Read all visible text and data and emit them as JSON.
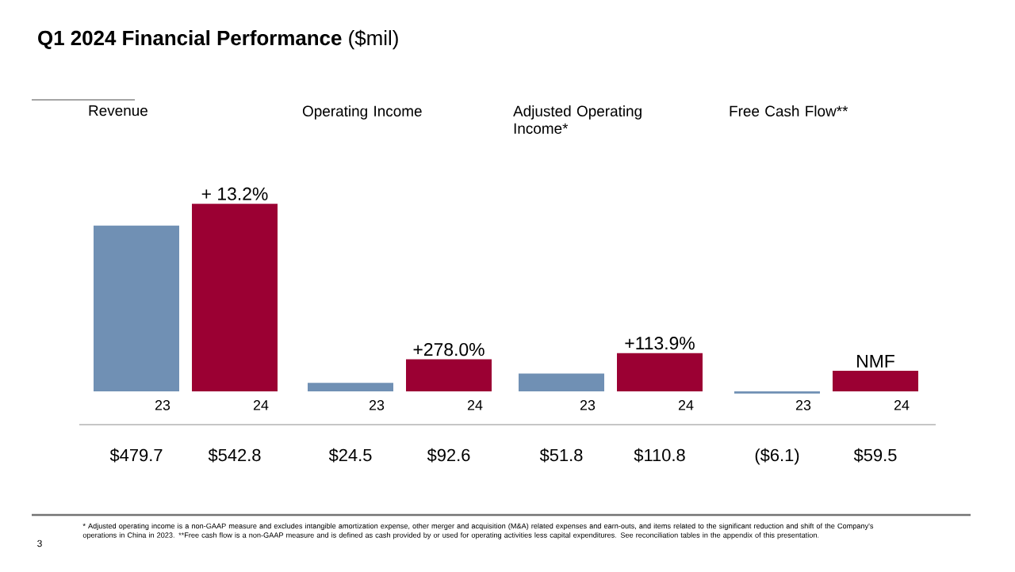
{
  "chart_data": [
    {
      "type": "bar",
      "title": "Revenue",
      "categories": [
        "23",
        "24"
      ],
      "values": [
        479.7,
        542.8
      ],
      "colors": [
        "#7090b4",
        "#9b0033"
      ],
      "value_labels": [
        "$479.7",
        "$542.8"
      ],
      "tick_labels": "x",
      "annotations": [
        {
          "text": "+ 13.2%",
          "x": "24",
          "y": 542.8
        },
        "**Q1 2024 Financial Performance** ($mil)",
        "* Adjusted operating income is a non-GAAP measure and excludes intangible amortization expense, other merger and acquisition (M&A) related expenses and earn-outs, and items related to the significant reduction and shift of the Company's operations in China in 2023. **Free cash flow is a non-GAAP measure and is defined as cash provided by or used for operating activities less capital expenditures. See reconciliation tables in the appendix of this presentation.",
        "3"
      ]
    },
    {
      "type": "bar",
      "title": "Operating Income",
      "categories": [
        "23",
        "24"
      ],
      "values": [
        24.5,
        92.6
      ],
      "colors": [
        "#7090b4",
        "#9b0033"
      ],
      "value_labels": [
        "$24.5",
        "$92.6"
      ],
      "tick_labels": "x",
      "annotations": [
        {
          "text": "+278.0%",
          "x": "24",
          "y": 92.6
        }
      ]
    },
    {
      "type": "bar",
      "title": "Adjusted Operating Income*",
      "categories": [
        "23",
        "24"
      ],
      "values": [
        51.8,
        110.8
      ],
      "colors": [
        "#7090b4",
        "#9b0033"
      ],
      "value_labels": [
        "$51.8",
        "$110.8"
      ],
      "tick_labels": "x",
      "annotations": [
        {
          "text": "+113.9%",
          "x": "24",
          "y": 110.8
        }
      ]
    },
    {
      "type": "bar",
      "title": "Free Cash Flow**",
      "categories": [
        "23",
        "24"
      ],
      "values": [
        -6.1,
        59.5
      ],
      "colors": [
        "#7090b4",
        "#9b0033"
      ],
      "value_labels": [
        "($6.1)",
        "$59.5"
      ],
      "tick_labels": "x",
      "annotations": [
        {
          "text": "NMF",
          "x": "24",
          "y": 59.5
        }
      ]
    }
  ]
}
